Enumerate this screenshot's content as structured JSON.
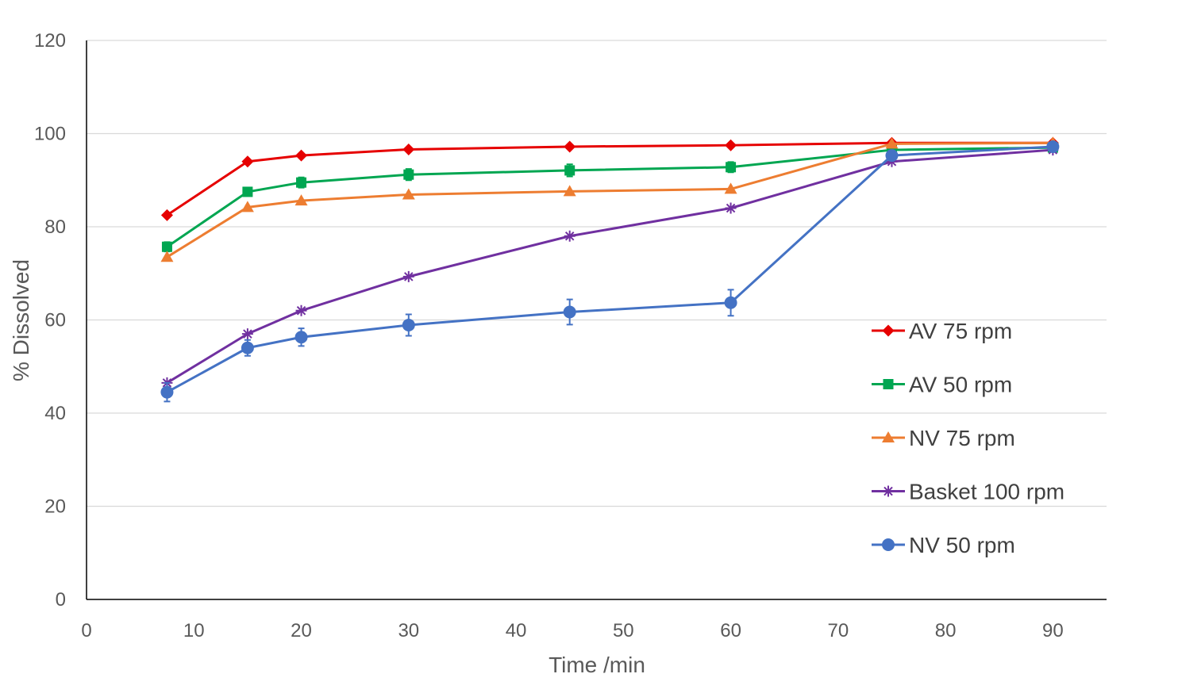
{
  "chart_data": {
    "type": "line",
    "title": "",
    "xlabel": "Time /min",
    "ylabel": "% Dissolved",
    "xlim": [
      0,
      95
    ],
    "ylim": [
      0,
      120
    ],
    "xticks": [
      0,
      10,
      20,
      30,
      40,
      50,
      60,
      70,
      80,
      90
    ],
    "xtick_labels": [
      "0",
      "10",
      "20",
      "30",
      "40",
      "50",
      "60",
      "70",
      "80",
      "90"
    ],
    "yticks": [
      0,
      20,
      40,
      60,
      80,
      100,
      120
    ],
    "ytick_labels": [
      "0",
      "20",
      "40",
      "60",
      "80",
      "100",
      "120"
    ],
    "grid": "horizontal",
    "legend_position": "right",
    "x": [
      7.5,
      15,
      20,
      30,
      45,
      60,
      75,
      90
    ],
    "series": [
      {
        "name": "AV 75 rpm",
        "color": "#e60000",
        "marker": "diamond",
        "values": [
          82.5,
          94.0,
          95.3,
          96.6,
          97.2,
          97.5,
          98.0,
          98.0
        ]
      },
      {
        "name": "AV 50 rpm",
        "color": "#00a651",
        "marker": "square",
        "values": [
          75.7,
          87.5,
          89.5,
          91.2,
          92.1,
          92.8,
          96.5,
          97.0
        ],
        "errors": [
          1.0,
          0.8,
          1.1,
          1.2,
          1.3,
          1.1,
          0.8,
          0.6
        ]
      },
      {
        "name": "NV 75 rpm",
        "color": "#ed7d31",
        "marker": "triangle",
        "values": [
          73.5,
          84.2,
          85.6,
          86.9,
          87.6,
          88.1,
          97.8,
          98.0
        ]
      },
      {
        "name": "Basket 100 rpm",
        "color": "#7030a0",
        "marker": "star",
        "values": [
          46.5,
          57.0,
          62.0,
          69.3,
          78.0,
          84.0,
          94.0,
          96.5
        ]
      },
      {
        "name": "NV 50 rpm",
        "color": "#4472c4",
        "marker": "circle",
        "values": [
          44.5,
          54.0,
          56.3,
          58.9,
          61.7,
          63.7,
          95.3,
          97.2
        ],
        "errors": [
          2.0,
          1.7,
          1.9,
          2.3,
          2.7,
          2.8,
          0.6,
          0.5
        ]
      }
    ]
  }
}
